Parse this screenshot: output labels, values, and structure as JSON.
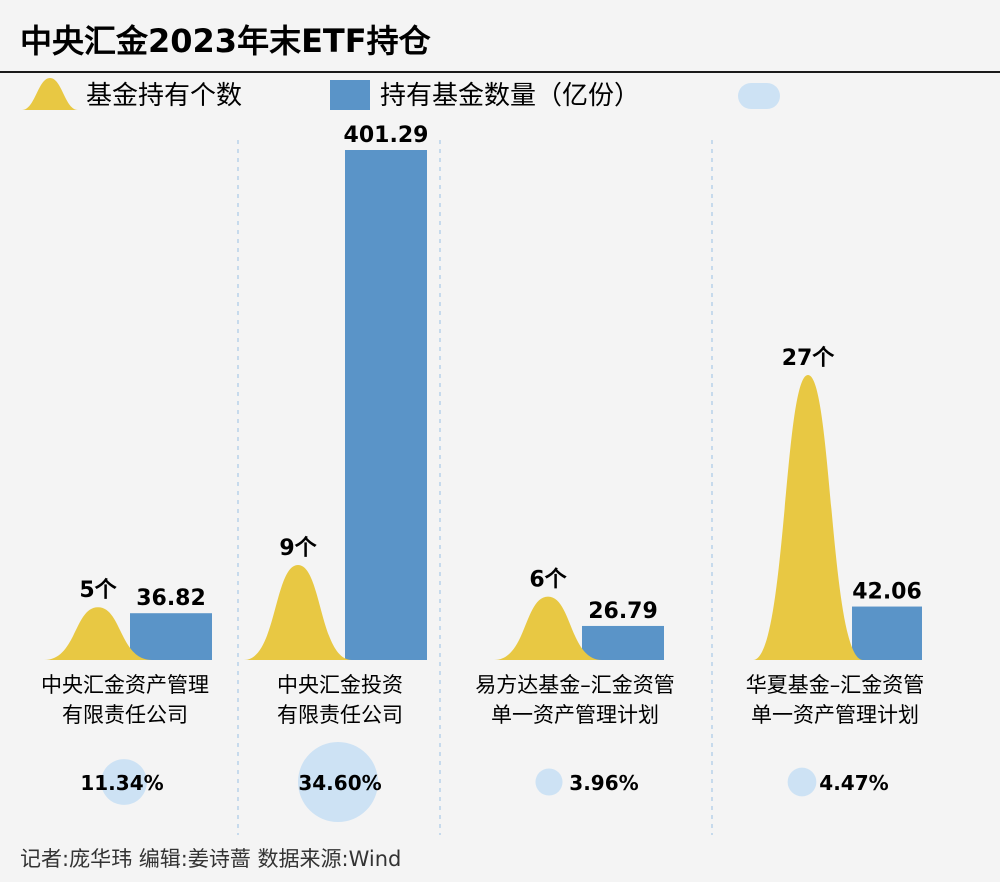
{
  "title": "中央汇金2023年末ETF持仓",
  "legend": {
    "count_label": "基金持有个数",
    "shares_label": "持有基金数量（亿份）"
  },
  "colors": {
    "bell": "#e8c843",
    "bar": "#5a94c8",
    "bubble": "#cde2f4",
    "divider": "#a9c9e6",
    "title_rule": "#1a1a1a"
  },
  "chart_data": {
    "type": "bar",
    "categories": [
      [
        "中央汇金资产管理",
        "有限责任公司"
      ],
      [
        "中央汇金投资",
        "有限责任公司"
      ],
      [
        "易方达基金–汇金资管",
        "单一资产管理计划"
      ],
      [
        "华夏基金–汇金资管",
        "单一资产管理计划"
      ]
    ],
    "series": [
      {
        "name": "基金持有个数",
        "values": [
          5,
          9,
          6,
          27
        ],
        "labels": [
          "5个",
          "9个",
          "6个",
          "27个"
        ]
      },
      {
        "name": "持有基金数量（亿份）",
        "values": [
          36.82,
          401.29,
          26.79,
          42.06
        ],
        "labels": [
          "36.82",
          "401.29",
          "26.79",
          "42.06"
        ]
      }
    ],
    "share_percent": {
      "values": [
        11.34,
        34.6,
        3.96,
        4.47
      ],
      "labels": [
        "11.34%",
        "34.60%",
        "3.96%",
        "4.47%"
      ]
    }
  },
  "footer": "记者:庞华玮   编辑:姜诗蔷   数据来源:Wind"
}
